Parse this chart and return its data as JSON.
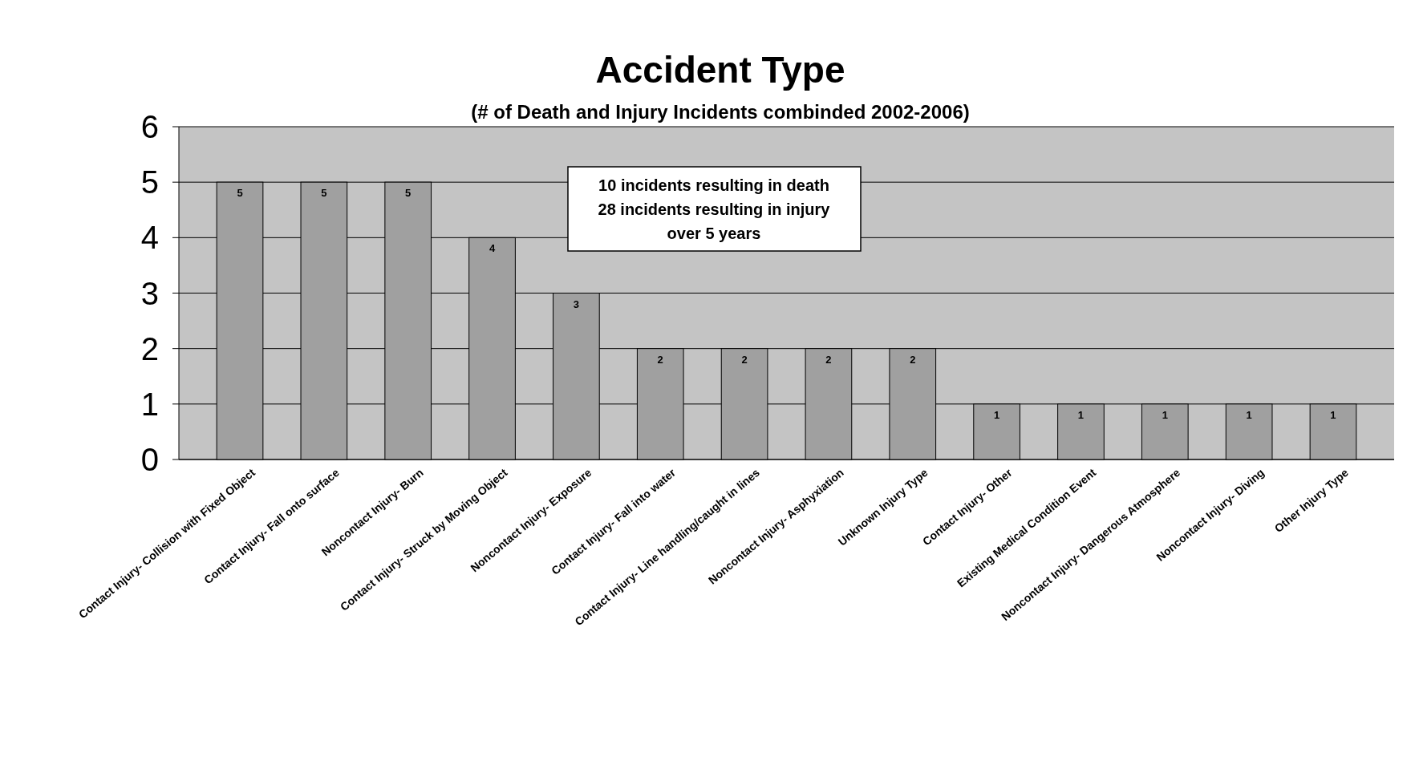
{
  "chart_data": {
    "type": "bar",
    "title": "Accident Type",
    "subtitle": "(# of Death and Injury Incidents combinded  2002-2006)",
    "categories": [
      "Contact Injury- Collision with Fixed Object",
      "Contact Injury- Fall onto surface",
      "Noncontact Injury- Burn",
      "Contact Injury- Struck by Moving Object",
      "Noncontact Injury- Exposure",
      "Contact Injury- Fall into water",
      "Contact Injury- Line handling/caught in lines",
      "Noncontact Injury- Asphyxiation",
      "Unknown Injury Type",
      "Contact Injury- Other",
      "Existing Medical Condition Event",
      "Noncontact Injury- Dangerous Atmosphere",
      "Noncontact Injury- Diving",
      "Other Injury Type"
    ],
    "values": [
      5,
      5,
      5,
      4,
      3,
      2,
      2,
      2,
      2,
      1,
      1,
      1,
      1,
      1
    ],
    "color": "#a0a0a0",
    "ylim": [
      0,
      6
    ],
    "yticks": [
      0,
      1,
      2,
      3,
      4,
      5,
      6
    ],
    "grid": "y",
    "data_labels": true,
    "annotations": [
      "10 incidents resulting in death",
      "28 incidents resulting in injury",
      "over 5 years"
    ]
  }
}
